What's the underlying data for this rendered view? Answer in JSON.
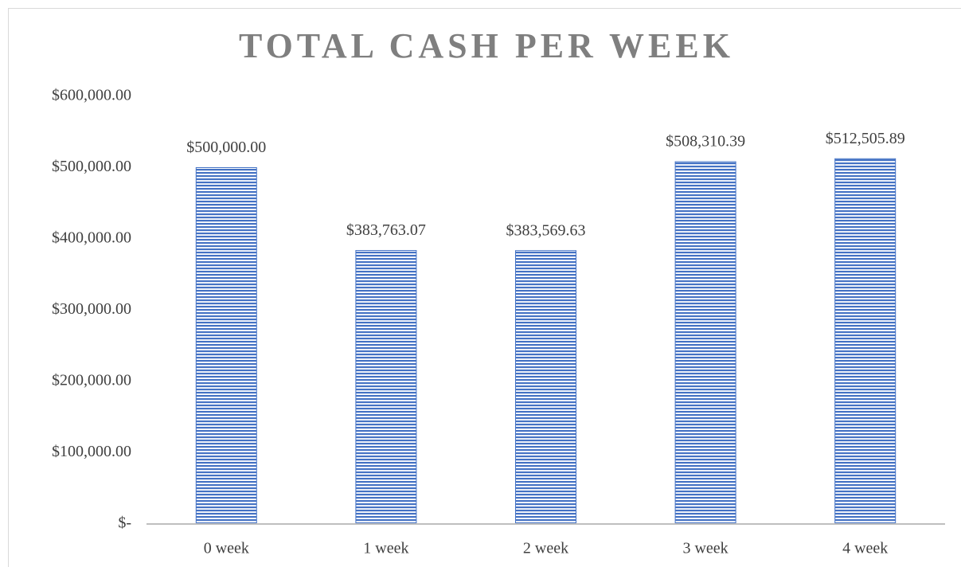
{
  "chart_data": {
    "type": "bar",
    "title": "TOTAL CASH PER WEEK",
    "categories": [
      "0 week",
      "1 week",
      "2 week",
      "3 week",
      "4 week"
    ],
    "values": [
      500000.0,
      383763.07,
      383569.63,
      508310.39,
      512505.89
    ],
    "value_labels": [
      "$500,000.00",
      "$383,763.07",
      "$383,569.63",
      "$508,310.39",
      "$512,505.89"
    ],
    "color": "#4472c4",
    "ylim": [
      0,
      600000
    ],
    "yticks": [
      {
        "value": 0,
        "label": "$-"
      },
      {
        "value": 100000,
        "label": "$100,000.00"
      },
      {
        "value": 200000,
        "label": "$200,000.00"
      },
      {
        "value": 300000,
        "label": "$300,000.00"
      },
      {
        "value": 400000,
        "label": "$400,000.00"
      },
      {
        "value": 500000,
        "label": "$500,000.00"
      },
      {
        "value": 600000,
        "label": "$600,000.00"
      }
    ],
    "grid": false
  }
}
